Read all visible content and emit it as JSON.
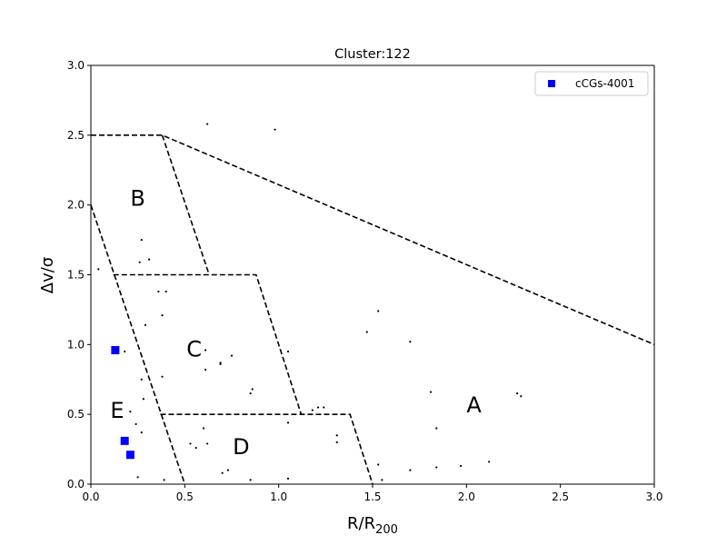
{
  "chart_data": {
    "type": "scatter",
    "title": "Cluster:122",
    "xlabel": "R/R",
    "xlabel_sub": "200",
    "ylabel": "Δv/σ",
    "xlim": [
      0.0,
      3.0
    ],
    "ylim": [
      0.0,
      3.0
    ],
    "xticks": [
      "0.0",
      "0.5",
      "1.0",
      "1.5",
      "2.0",
      "2.5",
      "3.0"
    ],
    "yticks": [
      "0.0",
      "0.5",
      "1.0",
      "1.5",
      "2.0",
      "2.5",
      "3.0"
    ],
    "grid": false,
    "legend_position": "top-right",
    "legend_entry": "cCGs-4001",
    "highlight_color": "#0000ff",
    "member_color": "#000000",
    "series": [
      {
        "name": "members",
        "points": [
          [
            0.62,
            2.58
          ],
          [
            0.98,
            2.54
          ],
          [
            0.27,
            1.75
          ],
          [
            0.31,
            1.61
          ],
          [
            0.26,
            1.59
          ],
          [
            0.04,
            1.54
          ],
          [
            0.36,
            1.38
          ],
          [
            0.4,
            1.38
          ],
          [
            0.29,
            1.14
          ],
          [
            0.38,
            1.21
          ],
          [
            1.53,
            1.24
          ],
          [
            1.47,
            1.09
          ],
          [
            1.7,
            1.02
          ],
          [
            0.61,
            0.96
          ],
          [
            0.75,
            0.92
          ],
          [
            0.69,
            0.87
          ],
          [
            0.69,
            0.86
          ],
          [
            1.05,
            0.95
          ],
          [
            0.18,
            0.95
          ],
          [
            0.61,
            0.82
          ],
          [
            0.38,
            0.77
          ],
          [
            0.27,
            0.75
          ],
          [
            0.28,
            0.61
          ],
          [
            0.86,
            0.68
          ],
          [
            0.85,
            0.65
          ],
          [
            1.81,
            0.66
          ],
          [
            2.27,
            0.65
          ],
          [
            2.29,
            0.63
          ],
          [
            1.21,
            0.55
          ],
          [
            1.24,
            0.55
          ],
          [
            1.18,
            0.53
          ],
          [
            0.21,
            0.52
          ],
          [
            0.24,
            0.43
          ],
          [
            1.05,
            0.44
          ],
          [
            0.6,
            0.4
          ],
          [
            1.84,
            0.4
          ],
          [
            0.27,
            0.37
          ],
          [
            1.31,
            0.35
          ],
          [
            1.31,
            0.3
          ],
          [
            0.53,
            0.29
          ],
          [
            0.62,
            0.29
          ],
          [
            0.56,
            0.26
          ],
          [
            2.12,
            0.16
          ],
          [
            1.53,
            0.14
          ],
          [
            1.84,
            0.12
          ],
          [
            1.97,
            0.13
          ],
          [
            1.7,
            0.1
          ],
          [
            0.73,
            0.1
          ],
          [
            0.7,
            0.08
          ],
          [
            0.25,
            0.05
          ],
          [
            1.05,
            0.04
          ],
          [
            0.39,
            0.03
          ],
          [
            0.85,
            0.03
          ],
          [
            1.55,
            0.03
          ]
        ]
      },
      {
        "name": "cCGs-4001",
        "points": [
          [
            0.13,
            0.96
          ],
          [
            0.18,
            0.31
          ],
          [
            0.21,
            0.21
          ]
        ]
      }
    ],
    "boundaries": [
      [
        [
          0.0,
          2.5
        ],
        [
          0.38,
          2.5
        ],
        [
          3.0,
          1.0
        ]
      ],
      [
        [
          0.38,
          2.5
        ],
        [
          0.63,
          1.5
        ]
      ],
      [
        [
          0.0,
          2.0
        ],
        [
          0.5,
          0.0
        ]
      ],
      [
        [
          0.12,
          1.5
        ],
        [
          0.88,
          1.5
        ],
        [
          1.12,
          0.5
        ]
      ],
      [
        [
          0.37,
          0.5
        ],
        [
          1.38,
          0.5
        ],
        [
          1.5,
          0.0
        ]
      ]
    ],
    "region_labels": [
      {
        "text": "A",
        "x": 2.04,
        "y": 0.56
      },
      {
        "text": "B",
        "x": 0.25,
        "y": 2.04
      },
      {
        "text": "C",
        "x": 0.55,
        "y": 0.96
      },
      {
        "text": "D",
        "x": 0.8,
        "y": 0.26
      },
      {
        "text": "E",
        "x": 0.14,
        "y": 0.52
      }
    ]
  }
}
